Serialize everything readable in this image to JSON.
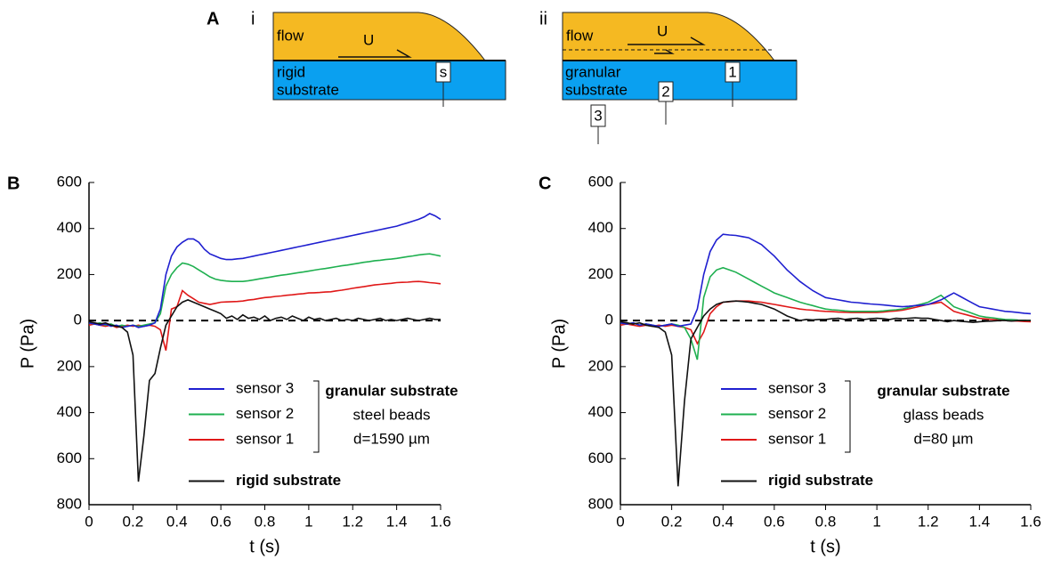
{
  "diagram": {
    "label": "A",
    "panels": [
      {
        "label": "i",
        "flow": "flow",
        "velocity": "U",
        "substrate": [
          "rigid",
          "substrate"
        ],
        "sensors": [
          "s"
        ]
      },
      {
        "label": "ii",
        "flow": "flow",
        "velocity": "U",
        "substrate": [
          "granular",
          "substrate"
        ],
        "sensors": [
          "1",
          "2",
          "3"
        ]
      }
    ]
  },
  "chart_data": [
    {
      "type": "line",
      "panel": "B",
      "xlabel": "t (s)",
      "ylabel": "P (Pa)",
      "hline": 0,
      "annotations": [
        "granular substrate",
        "steel beads",
        "d=1590 µm"
      ],
      "xlim": [
        0,
        1.6
      ],
      "xticks": [
        0,
        0.2,
        0.4,
        0.6,
        0.8,
        1,
        1.2,
        1.4,
        1.6
      ],
      "ylim": [
        -800,
        600
      ],
      "yticks": [
        600,
        400,
        200,
        0,
        {
          "value": -200,
          "label": "200"
        },
        {
          "value": -400,
          "label": "400"
        },
        {
          "value": -600,
          "label": "600"
        },
        {
          "value": -800,
          "label": "800"
        }
      ],
      "x": [
        0,
        0.025,
        0.05,
        0.075,
        0.1,
        0.125,
        0.15,
        0.175,
        0.2,
        0.225,
        0.25,
        0.275,
        0.3,
        0.325,
        0.35,
        0.375,
        0.4,
        0.425,
        0.45,
        0.475,
        0.5,
        0.525,
        0.55,
        0.575,
        0.6,
        0.625,
        0.65,
        0.675,
        0.7,
        0.725,
        0.75,
        0.775,
        0.8,
        0.825,
        0.85,
        0.875,
        0.9,
        0.925,
        0.95,
        0.975,
        1,
        1.025,
        1.05,
        1.075,
        1.1,
        1.125,
        1.15,
        1.175,
        1.2,
        1.225,
        1.25,
        1.275,
        1.3,
        1.325,
        1.35,
        1.375,
        1.4,
        1.425,
        1.45,
        1.475,
        1.5,
        1.525,
        1.55,
        1.575,
        1.6
      ],
      "series": [
        {
          "name": "sensor 3",
          "color": "#1f1fd0",
          "values": [
            -10,
            -15,
            -20,
            -15,
            -25,
            -20,
            -30,
            -25,
            -20,
            -30,
            -25,
            -20,
            -10,
            50,
            200,
            280,
            320,
            340,
            355,
            355,
            340,
            310,
            290,
            280,
            270,
            265,
            265,
            268,
            270,
            275,
            280,
            285,
            290,
            295,
            300,
            305,
            310,
            315,
            320,
            325,
            330,
            335,
            340,
            345,
            350,
            355,
            360,
            365,
            370,
            375,
            380,
            385,
            390,
            395,
            400,
            405,
            410,
            418,
            425,
            432,
            440,
            450,
            465,
            455,
            440
          ]
        },
        {
          "name": "sensor 2",
          "color": "#1fb050",
          "values": [
            -10,
            -15,
            -10,
            -20,
            -15,
            -25,
            -20,
            -25,
            -20,
            -25,
            -20,
            -15,
            -10,
            30,
            150,
            200,
            230,
            250,
            245,
            235,
            220,
            205,
            190,
            180,
            175,
            172,
            170,
            170,
            170,
            173,
            177,
            181,
            185,
            189,
            193,
            197,
            200,
            204,
            208,
            211,
            215,
            219,
            223,
            226,
            230,
            234,
            238,
            241,
            245,
            249,
            253,
            256,
            260,
            262,
            265,
            267,
            270,
            274,
            278,
            281,
            285,
            288,
            290,
            285,
            280
          ]
        },
        {
          "name": "sensor 1",
          "color": "#e01818",
          "values": [
            -20,
            -15,
            -20,
            -25,
            -20,
            -30,
            -25,
            -20,
            -25,
            -20,
            -25,
            -20,
            -25,
            -40,
            -130,
            50,
            60,
            130,
            110,
            95,
            80,
            75,
            70,
            75,
            80,
            81,
            82,
            83,
            85,
            89,
            92,
            96,
            100,
            102,
            105,
            107,
            110,
            112,
            115,
            117,
            120,
            121,
            122,
            124,
            125,
            129,
            132,
            136,
            140,
            144,
            147,
            151,
            155,
            157,
            160,
            162,
            165,
            166,
            167,
            169,
            170,
            168,
            165,
            163,
            160
          ]
        },
        {
          "name": "rigid substrate",
          "color": "#111111",
          "values": [
            -5,
            -10,
            -15,
            -10,
            -20,
            -25,
            -30,
            -50,
            -150,
            -700,
            -500,
            -260,
            -230,
            -120,
            -20,
            20,
            60,
            80,
            90,
            80,
            70,
            60,
            50,
            40,
            30,
            10,
            20,
            5,
            25,
            10,
            15,
            5,
            20,
            0,
            10,
            15,
            5,
            20,
            10,
            0,
            15,
            5,
            10,
            0,
            5,
            10,
            0,
            5,
            0,
            10,
            5,
            0,
            5,
            10,
            0,
            5,
            0,
            5,
            10,
            5,
            0,
            5,
            10,
            5,
            5
          ]
        }
      ]
    },
    {
      "type": "line",
      "panel": "C",
      "xlabel": "t (s)",
      "ylabel": "P (Pa)",
      "hline": 0,
      "annotations": [
        "granular substrate",
        "glass beads",
        "d=80 µm"
      ],
      "xlim": [
        0,
        1.6
      ],
      "xticks": [
        0,
        0.2,
        0.4,
        0.6,
        0.8,
        1,
        1.2,
        1.4,
        1.6
      ],
      "ylim": [
        -800,
        600
      ],
      "yticks": [
        600,
        400,
        200,
        0,
        {
          "value": -200,
          "label": "200"
        },
        {
          "value": -400,
          "label": "400"
        },
        {
          "value": -600,
          "label": "600"
        },
        {
          "value": -800,
          "label": "800"
        }
      ],
      "x": [
        0,
        0.025,
        0.05,
        0.075,
        0.1,
        0.125,
        0.15,
        0.175,
        0.2,
        0.225,
        0.25,
        0.275,
        0.3,
        0.325,
        0.35,
        0.375,
        0.4,
        0.425,
        0.45,
        0.475,
        0.5,
        0.525,
        0.55,
        0.575,
        0.6,
        0.625,
        0.65,
        0.675,
        0.7,
        0.725,
        0.75,
        0.775,
        0.8,
        0.825,
        0.85,
        0.875,
        0.9,
        0.925,
        0.95,
        0.975,
        1,
        1.025,
        1.05,
        1.075,
        1.1,
        1.125,
        1.15,
        1.175,
        1.2,
        1.225,
        1.25,
        1.275,
        1.3,
        1.325,
        1.35,
        1.375,
        1.4,
        1.425,
        1.45,
        1.475,
        1.5,
        1.525,
        1.55,
        1.575,
        1.6
      ],
      "series": [
        {
          "name": "sensor 3",
          "color": "#1f1fd0",
          "values": [
            -10,
            -15,
            -10,
            -20,
            -15,
            -20,
            -25,
            -20,
            -15,
            -25,
            -20,
            -15,
            50,
            200,
            300,
            350,
            375,
            372,
            370,
            365,
            360,
            345,
            330,
            305,
            280,
            250,
            220,
            195,
            170,
            150,
            130,
            115,
            100,
            95,
            90,
            85,
            80,
            78,
            75,
            72,
            70,
            68,
            65,
            62,
            60,
            62,
            65,
            67,
            70,
            80,
            90,
            105,
            120,
            105,
            90,
            75,
            60,
            55,
            50,
            45,
            40,
            38,
            35,
            32,
            30
          ]
        },
        {
          "name": "sensor 2",
          "color": "#1fb050",
          "values": [
            -10,
            -15,
            -10,
            -20,
            -15,
            -20,
            -25,
            -20,
            -15,
            -20,
            -30,
            -80,
            -170,
            100,
            190,
            220,
            230,
            220,
            210,
            195,
            180,
            165,
            150,
            135,
            120,
            110,
            100,
            90,
            80,
            72,
            65,
            57,
            50,
            47,
            45,
            42,
            40,
            40,
            40,
            40,
            40,
            42,
            45,
            47,
            50,
            57,
            65,
            72,
            80,
            95,
            110,
            85,
            60,
            50,
            40,
            30,
            20,
            15,
            12,
            8,
            5,
            4,
            2,
            1,
            0
          ]
        },
        {
          "name": "sensor 1",
          "color": "#e01818",
          "values": [
            -20,
            -15,
            -20,
            -25,
            -20,
            -25,
            -20,
            -25,
            -20,
            -25,
            -30,
            -40,
            -100,
            -50,
            30,
            60,
            80,
            82,
            85,
            85,
            85,
            82,
            80,
            75,
            70,
            65,
            60,
            55,
            50,
            47,
            45,
            42,
            40,
            39,
            37,
            36,
            35,
            35,
            35,
            35,
            35,
            37,
            40,
            42,
            45,
            51,
            57,
            64,
            70,
            75,
            80,
            60,
            40,
            32,
            25,
            17,
            10,
            7,
            5,
            2,
            0,
            -1,
            -2,
            -4,
            -5
          ]
        },
        {
          "name": "rigid substrate",
          "color": "#111111",
          "values": [
            -5,
            -10,
            -15,
            -10,
            -20,
            -25,
            -30,
            -50,
            -150,
            -720,
            -350,
            -80,
            -30,
            20,
            50,
            70,
            80,
            83,
            85,
            83,
            80,
            75,
            70,
            60,
            50,
            35,
            20,
            10,
            0,
            5,
            3,
            5,
            5,
            8,
            10,
            5,
            8,
            10,
            5,
            8,
            10,
            8,
            5,
            10,
            8,
            10,
            12,
            10,
            10,
            5,
            0,
            -5,
            0,
            -3,
            -5,
            -8,
            -5,
            -3,
            -2,
            0,
            0,
            -2,
            0,
            0,
            0
          ]
        }
      ]
    }
  ]
}
